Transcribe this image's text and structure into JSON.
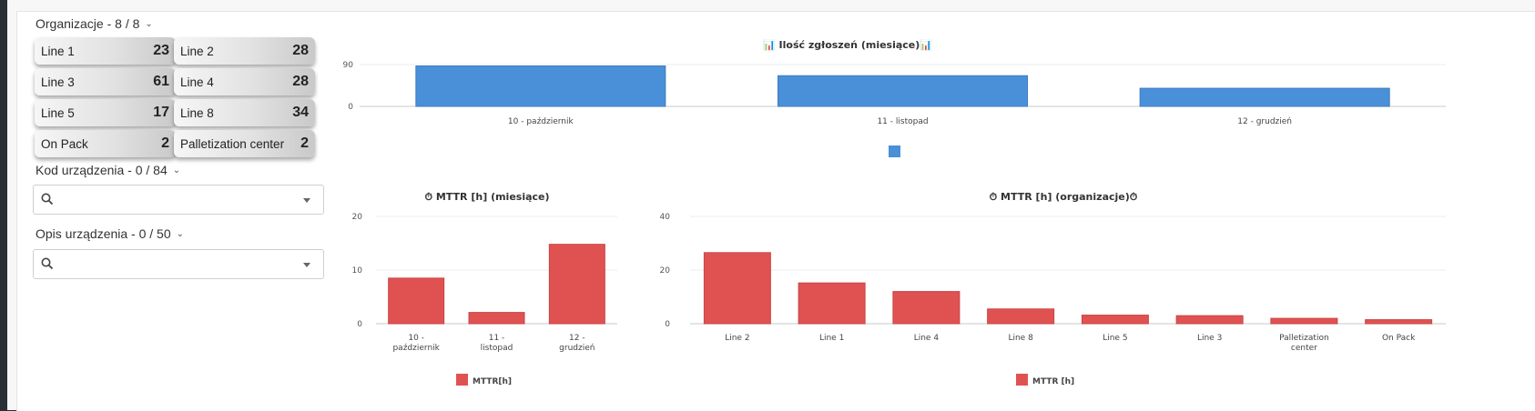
{
  "filters": {
    "org": {
      "title": "Organizacje - 8 / 8",
      "items": [
        {
          "label": "Line 1",
          "count": "23"
        },
        {
          "label": "Line 2",
          "count": "28"
        },
        {
          "label": "Line 3",
          "count": "61"
        },
        {
          "label": "Line 4",
          "count": "28"
        },
        {
          "label": "Line 5",
          "count": "17"
        },
        {
          "label": "Line 8",
          "count": "34"
        },
        {
          "label": "On Pack",
          "count": "2"
        },
        {
          "label": "Palletization center",
          "count": "2"
        }
      ]
    },
    "device_code": {
      "title": "Kod urządzenia - 0 / 84",
      "value": ""
    },
    "device_desc": {
      "title": "Opis urządzenia - 0 / 50",
      "value": ""
    }
  },
  "colors": {
    "blue": "#4a90d9",
    "red": "#e05252"
  },
  "chart_data": [
    {
      "type": "bar",
      "title": "📊 Ilość zgłoszeń (miesiące)📊",
      "categories": [
        "10 - październik",
        "11 - listopad",
        "12 - grudzień"
      ],
      "values": [
        87,
        66,
        39
      ],
      "ylim": [
        0,
        90
      ],
      "yticks": [
        "0",
        "90"
      ],
      "legend": "bottom",
      "series_name": "",
      "color": "#4a90d9"
    },
    {
      "type": "bar",
      "title": "⏱ MTTR [h] (miesiące)",
      "categories": [
        "10 - październik",
        "11 - listopad",
        "12 - grudzień"
      ],
      "values": [
        8.5,
        2.1,
        14.8
      ],
      "ylim": [
        0,
        20
      ],
      "yticks": [
        "0",
        "10",
        "20"
      ],
      "legend": "bottom",
      "series_name": "MTTR[h]",
      "color": "#e05252"
    },
    {
      "type": "bar",
      "title": "⏱ MTTR [h] (organizacje)⏱",
      "categories": [
        "Line 2",
        "Line 1",
        "Line 4",
        "Line 8",
        "Line 5",
        "Line 3",
        "Palletization center",
        "On Pack"
      ],
      "values": [
        26.5,
        15.2,
        12.0,
        5.5,
        3.2,
        3.0,
        2.0,
        1.5
      ],
      "ylim": [
        0,
        40
      ],
      "yticks": [
        "0",
        "20",
        "40"
      ],
      "legend": "bottom",
      "series_name": "MTTR [h]",
      "color": "#e05252"
    }
  ]
}
